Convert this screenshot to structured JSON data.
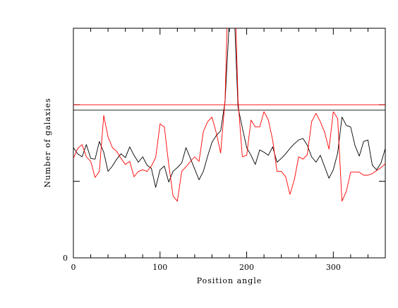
{
  "chart_data": {
    "type": "line",
    "xlabel": "Position angle",
    "ylabel": "Number of galaxies",
    "xlim": [
      0,
      360
    ],
    "ylim": [
      0,
      30
    ],
    "x_ticks": [
      0,
      100,
      200,
      300
    ],
    "y_tick_label": "0",
    "x_minor_step": 20,
    "y_major_step": 10,
    "grid": false,
    "colors": {
      "series_a": "#000000",
      "series_b": "#ff0000"
    },
    "x": [
      0,
      5,
      10,
      15,
      20,
      25,
      30,
      35,
      40,
      45,
      50,
      55,
      60,
      65,
      70,
      75,
      80,
      85,
      90,
      95,
      100,
      105,
      110,
      115,
      120,
      125,
      130,
      135,
      140,
      145,
      150,
      155,
      160,
      165,
      170,
      175,
      180,
      185,
      190,
      195,
      200,
      205,
      210,
      215,
      220,
      225,
      230,
      235,
      240,
      245,
      250,
      255,
      260,
      265,
      270,
      275,
      280,
      285,
      290,
      295,
      300,
      305,
      310,
      315,
      320,
      325,
      330,
      335,
      340,
      345,
      350,
      355,
      360
    ],
    "series": [
      {
        "values": [
          14.4,
          13.6,
          13.2,
          14.8,
          13.0,
          12.9,
          15.2,
          13.8,
          11.3,
          12.0,
          12.9,
          13.6,
          13.1,
          14.5,
          13.4,
          12.5,
          13.2,
          12.1,
          11.7,
          9.2,
          11.5,
          12.0,
          9.9,
          11.3,
          11.8,
          12.4,
          14.4,
          13.0,
          11.6,
          10.2,
          11.3,
          13.3,
          15.1,
          16.0,
          16.6,
          20.4,
          31.0,
          34.0,
          19.7,
          17.0,
          14.4,
          13.4,
          12.2,
          14.1,
          13.8,
          13.4,
          14.5,
          12.5,
          13.0,
          13.6,
          14.3,
          14.9,
          15.4,
          15.6,
          14.7,
          13.2,
          12.5,
          13.4,
          11.9,
          10.4,
          11.5,
          13.7,
          18.4,
          17.3,
          17.1,
          14.7,
          13.3,
          15.2,
          15.4,
          12.1,
          11.5,
          12.4,
          14.3
        ]
      },
      {
        "values": [
          13.0,
          14.3,
          14.8,
          13.2,
          12.6,
          10.5,
          11.3,
          18.6,
          15.8,
          14.4,
          13.9,
          13.0,
          12.2,
          12.6,
          10.6,
          11.3,
          11.5,
          11.3,
          12.0,
          13.1,
          17.5,
          17.1,
          12.2,
          8.1,
          7.4,
          11.3,
          11.9,
          12.6,
          13.2,
          12.6,
          16.5,
          17.8,
          18.4,
          16.3,
          13.7,
          20.6,
          41.0,
          41.0,
          20.6,
          13.2,
          13.4,
          18.0,
          17.1,
          17.1,
          19.1,
          18.0,
          15.4,
          11.3,
          11.3,
          10.6,
          8.3,
          10.2,
          13.2,
          12.9,
          13.5,
          17.8,
          18.9,
          17.8,
          16.4,
          14.2,
          19.1,
          18.2,
          7.4,
          8.7,
          11.2,
          11.2,
          11.2,
          10.8,
          10.8,
          11.0,
          11.4,
          11.8,
          12.3
        ]
      }
    ],
    "reference_lines": [
      {
        "color": "red",
        "y": 20.0
      },
      {
        "color": "black",
        "y": 19.3
      }
    ]
  }
}
